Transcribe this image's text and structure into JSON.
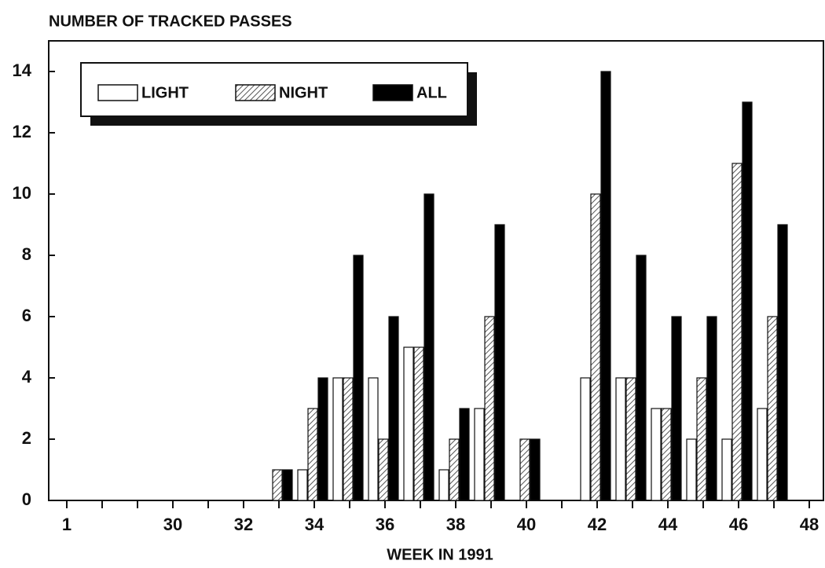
{
  "chart_data": {
    "type": "bar",
    "title": "NUMBER OF TRACKED PASSES",
    "xlabel": "WEEK IN 1991",
    "categories": [
      "1",
      null,
      null,
      "30",
      null,
      "32",
      null,
      "34",
      null,
      "36",
      null,
      "38",
      null,
      "40",
      null,
      "42",
      null,
      "44",
      null,
      "46",
      null,
      "48"
    ],
    "series": [
      {
        "name": "LIGHT",
        "color": "#ffffff",
        "values": [
          0,
          0,
          0,
          0,
          0,
          0,
          0,
          1,
          4,
          4,
          5,
          1,
          3,
          0,
          0,
          4,
          4,
          3,
          2,
          2,
          3,
          0
        ]
      },
      {
        "name": "NIGHT",
        "color": "#555555",
        "hatch": true,
        "values": [
          0,
          0,
          0,
          0,
          0,
          0,
          1,
          3,
          4,
          2,
          5,
          2,
          6,
          2,
          0,
          10,
          4,
          3,
          4,
          11,
          6,
          0
        ]
      },
      {
        "name": "ALL",
        "color": "#000000",
        "values": [
          0,
          0,
          0,
          0,
          0,
          0,
          1,
          4,
          8,
          6,
          10,
          3,
          9,
          2,
          0,
          14,
          8,
          6,
          6,
          13,
          9,
          0
        ]
      }
    ],
    "ylim": [
      0,
      15
    ],
    "yticks": [
      0,
      2,
      4,
      6,
      8,
      10,
      12,
      14
    ],
    "legend": "upper left"
  }
}
